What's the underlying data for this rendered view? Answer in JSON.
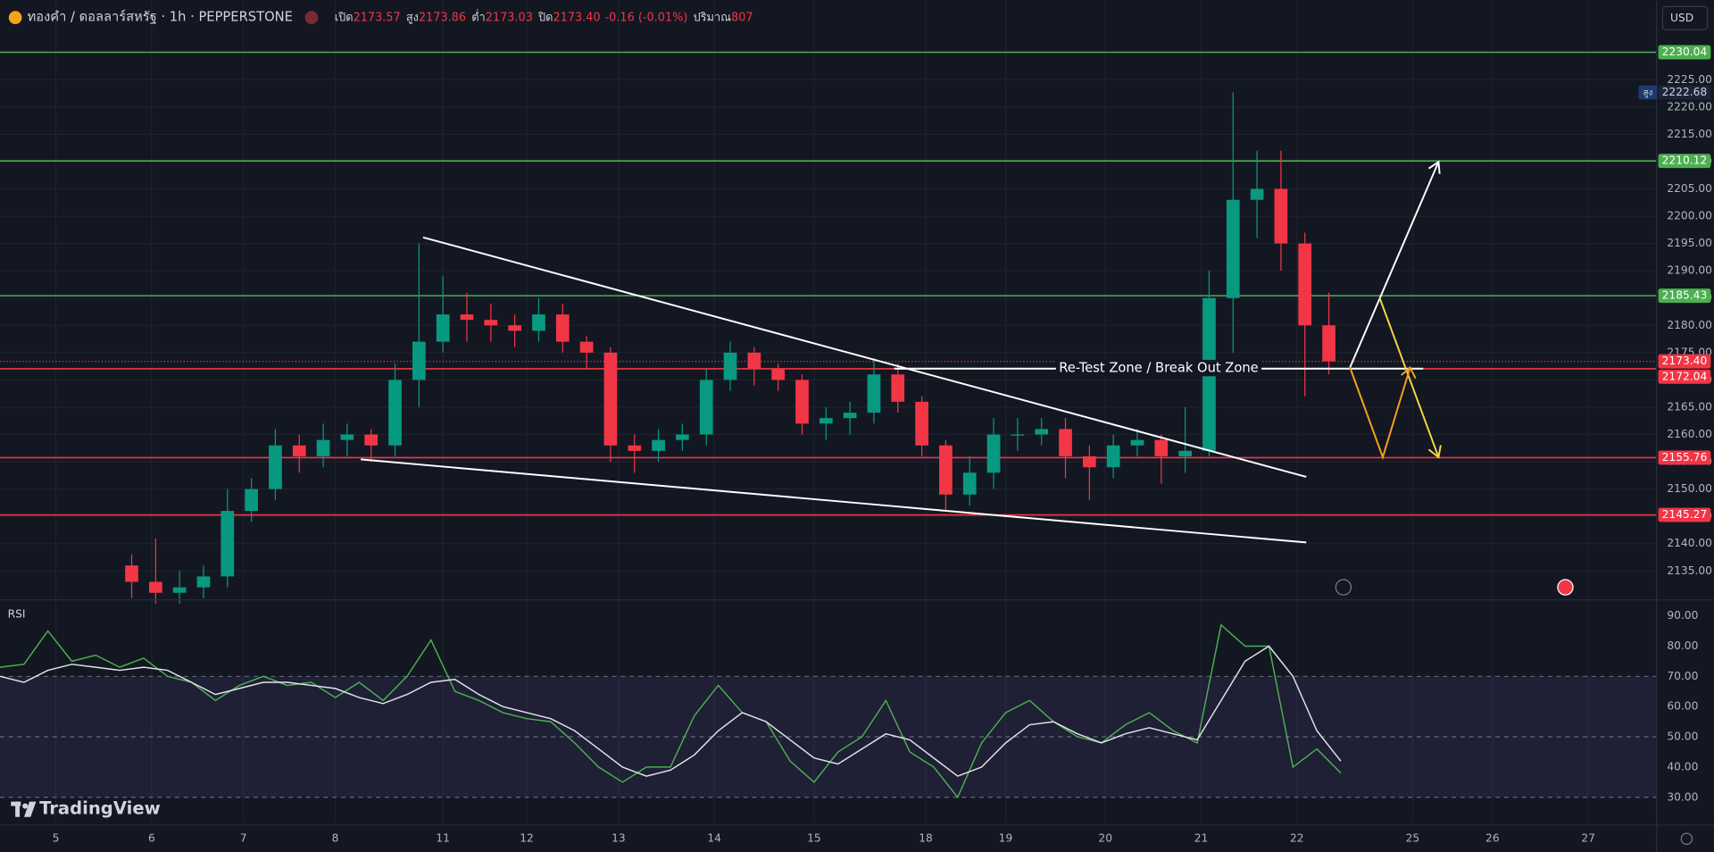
{
  "ui": {
    "currency": "USD",
    "logo": "TradingView"
  },
  "chart_data": [
    {
      "type": "candlestick",
      "title": "ทองคำ / ดอลลาร์สหรัฐ · 1h · PEPPERSTONE",
      "ohlc_legend": [
        {
          "label": "เปิด",
          "value": "2173.57"
        },
        {
          "label": "สูง",
          "value": "2173.86"
        },
        {
          "label": "ต่ำ",
          "value": "2173.03"
        },
        {
          "label": "ปิด",
          "value": "2173.40"
        }
      ],
      "change": "-0.16 (-0.01%)",
      "volume": {
        "label": "ปริมาณ",
        "value": "807"
      },
      "up_color": "#089981",
      "down_color": "#f23645",
      "x": [
        33,
        39,
        45,
        51,
        57,
        63,
        69,
        75,
        81,
        87,
        93,
        99,
        105,
        111,
        117,
        123,
        129,
        135,
        141,
        147,
        153,
        159,
        165,
        171,
        177,
        183,
        189,
        195,
        201,
        207,
        213,
        219,
        225,
        231,
        237,
        243,
        249,
        255,
        261,
        267,
        273,
        279,
        285,
        291,
        297,
        303,
        309,
        315,
        321,
        327,
        333
      ],
      "open": [
        2136,
        2133,
        2131,
        2132,
        2134,
        2146,
        2150,
        2158,
        2156,
        2159,
        2160,
        2158,
        2170,
        2177,
        2182,
        2181,
        2180,
        2179,
        2182,
        2177,
        2175,
        2158,
        2157,
        2159,
        2160,
        2170,
        2175,
        2172,
        2170,
        2162,
        2163,
        2164,
        2171,
        2166,
        2158,
        2149,
        2153,
        2160,
        2160,
        2161,
        2156,
        2154,
        2158,
        2159,
        2156,
        2157,
        2185,
        2203,
        2205,
        2195,
        2180
      ],
      "high": [
        2138,
        2141,
        2135,
        2136,
        2150,
        2152,
        2161,
        2160,
        2162,
        2162,
        2161,
        2173,
        2195,
        2189,
        2186,
        2184,
        2182,
        2185,
        2184,
        2178,
        2176,
        2160,
        2161,
        2162,
        2172,
        2177,
        2176,
        2173,
        2171,
        2165,
        2166,
        2174,
        2173,
        2167,
        2159,
        2156,
        2163,
        2163,
        2163,
        2163,
        2158,
        2160,
        2161,
        2160,
        2165,
        2190,
        2222.68,
        2212,
        2212,
        2197,
        2186
      ],
      "low": [
        2130,
        2129,
        2129,
        2130,
        2132,
        2144,
        2148,
        2153,
        2154,
        2156,
        2155,
        2156,
        2165,
        2175,
        2177,
        2177,
        2176,
        2177,
        2175,
        2172,
        2155,
        2153,
        2155,
        2157,
        2158,
        2168,
        2169,
        2168,
        2160,
        2159,
        2160,
        2162,
        2164,
        2156,
        2146,
        2147,
        2150,
        2157,
        2158,
        2152,
        2148,
        2152,
        2156,
        2151,
        2153,
        2156,
        2175,
        2196,
        2190,
        2167,
        2171
      ],
      "close": [
        2133,
        2131,
        2132,
        2134,
        2146,
        2150,
        2158,
        2156,
        2159,
        2160,
        2158,
        2170,
        2177,
        2182,
        2181,
        2180,
        2179,
        2182,
        2177,
        2175,
        2158,
        2157,
        2159,
        2160,
        2170,
        2175,
        2172,
        2170,
        2162,
        2163,
        2164,
        2171,
        2166,
        2158,
        2149,
        2153,
        2160,
        2160,
        2161,
        2156,
        2154,
        2158,
        2159,
        2156,
        2157,
        2185,
        2203,
        2205,
        2195,
        2180,
        2173.4
      ],
      "xlim": [
        0,
        415
      ],
      "xticks": [
        {
          "value": 14,
          "label": "5"
        },
        {
          "value": 38,
          "label": "6"
        },
        {
          "value": 61,
          "label": "7"
        },
        {
          "value": 84,
          "label": "8"
        },
        {
          "value": 111,
          "label": "11"
        },
        {
          "value": 132,
          "label": "12"
        },
        {
          "value": 155,
          "label": "13"
        },
        {
          "value": 179,
          "label": "14"
        },
        {
          "value": 204,
          "label": "15"
        },
        {
          "value": 232,
          "label": "18"
        },
        {
          "value": 252,
          "label": "19"
        },
        {
          "value": 277,
          "label": "20"
        },
        {
          "value": 301,
          "label": "21"
        },
        {
          "value": 325,
          "label": "22"
        },
        {
          "value": 354,
          "label": "25"
        },
        {
          "value": 374,
          "label": "26"
        },
        {
          "value": 398,
          "label": "27"
        }
      ],
      "ylim": [
        2129.8,
        2239.6
      ],
      "yticks": [
        {
          "value": 2135,
          "label": "2135.00"
        },
        {
          "value": 2140,
          "label": "2140.00"
        },
        {
          "value": 2145,
          "label": "2145.00"
        },
        {
          "value": 2150,
          "label": "2150.00"
        },
        {
          "value": 2155,
          "label": "2155.00"
        },
        {
          "value": 2160,
          "label": "2160.00"
        },
        {
          "value": 2165,
          "label": "2165.00"
        },
        {
          "value": 2170,
          "label": "2170.00"
        },
        {
          "value": 2175,
          "label": "2175.00"
        },
        {
          "value": 2180,
          "label": "2180.00"
        },
        {
          "value": 2185,
          "label": "2185.00"
        },
        {
          "value": 2190,
          "label": "2190.00"
        },
        {
          "value": 2195,
          "label": "2195.00"
        },
        {
          "value": 2200,
          "label": "2200.00"
        },
        {
          "value": 2205,
          "label": "2205.00"
        },
        {
          "value": 2210,
          "label": "2210.00"
        },
        {
          "value": 2215,
          "label": "2215.00"
        },
        {
          "value": 2220,
          "label": "2220.00"
        },
        {
          "value": 2225,
          "label": "2225.00"
        }
      ],
      "grid": true,
      "levels": [
        {
          "value": 2230.04,
          "color": "#4caf50"
        },
        {
          "value": 2210.12,
          "color": "#4caf50"
        },
        {
          "value": 2185.43,
          "color": "#4caf50"
        },
        {
          "value": 2172.04,
          "color": "#f23645"
        },
        {
          "value": 2155.76,
          "color": "#f23645"
        },
        {
          "value": 2145.27,
          "color": "#f23645"
        }
      ],
      "last_price": {
        "value": 2173.4,
        "label": "2173.40"
      },
      "high_marker": {
        "label": "สูง",
        "value": 2222.68
      },
      "annotation": "Re-Test Zone / Break Out Zone"
    },
    {
      "type": "line",
      "title": "RSI",
      "x": [
        0,
        6,
        12,
        18,
        24,
        30,
        36,
        42,
        48,
        54,
        60,
        66,
        72,
        78,
        84,
        90,
        96,
        102,
        108,
        114,
        120,
        126,
        132,
        138,
        144,
        150,
        156,
        162,
        168,
        174,
        180,
        186,
        192,
        198,
        204,
        210,
        216,
        222,
        228,
        234,
        240,
        246,
        252,
        258,
        264,
        270,
        276,
        282,
        288,
        294,
        300,
        306,
        312,
        318,
        324,
        330,
        336
      ],
      "series": [
        {
          "color": "#4caf50",
          "values": [
            73,
            74,
            85,
            75,
            77,
            73,
            76,
            70,
            68,
            62,
            67,
            70,
            67,
            68,
            63,
            68,
            62,
            70,
            82,
            65,
            62,
            58,
            56,
            55,
            48,
            40,
            35,
            40,
            40,
            57,
            67,
            58,
            55,
            42,
            35,
            45,
            50,
            62,
            45,
            40,
            30,
            48,
            58,
            62,
            55,
            50,
            48,
            54,
            58,
            52,
            48,
            87,
            80,
            80,
            40,
            46,
            38
          ]
        },
        {
          "color": "#e0e3eb",
          "values": [
            70,
            68,
            72,
            74,
            73,
            72,
            73,
            72,
            68,
            64,
            66,
            68,
            68,
            67,
            66,
            63,
            61,
            64,
            68,
            69,
            64,
            60,
            58,
            56,
            52,
            46,
            40,
            37,
            39,
            44,
            52,
            58,
            55,
            49,
            43,
            41,
            46,
            51,
            49,
            43,
            37,
            40,
            48,
            54,
            55,
            51,
            48,
            51,
            53,
            51,
            49,
            62,
            75,
            80,
            70,
            52,
            42
          ]
        }
      ],
      "xlim": [
        0,
        415
      ],
      "ylim": [
        21.7,
        95.1
      ],
      "yticks": [
        {
          "value": 30,
          "label": "30.00"
        },
        {
          "value": 40,
          "label": "40.00"
        },
        {
          "value": 50,
          "label": "50.00"
        },
        {
          "value": 60,
          "label": "60.00"
        },
        {
          "value": 70,
          "label": "70.00"
        },
        {
          "value": 80,
          "label": "80.00"
        },
        {
          "value": 90,
          "label": "90.00"
        }
      ],
      "hlines": [
        70,
        50,
        30
      ]
    }
  ]
}
